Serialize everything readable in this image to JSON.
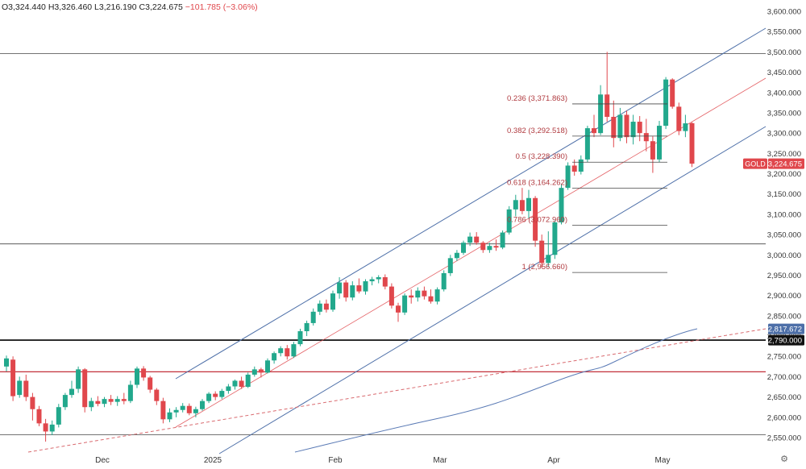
{
  "ohlc": {
    "open_label": "O",
    "open": "3,324.440",
    "high_label": "H",
    "high": "3,326.460",
    "low_label": "L",
    "low": "3,216.190",
    "close_label": "C",
    "close": "3,224.675",
    "change": "−101.785 (−3.06%)"
  },
  "colors": {
    "up": "#22a88c",
    "down": "#e0474c",
    "channel": "#4d6fa8",
    "fib": "#444444",
    "fib_text": "#b03a3f",
    "ma": "#5a7ab5",
    "support_dashed": "#d96a6f",
    "hline_dark": "#444444",
    "hline_red": "#c2303a",
    "axis_text": "#333333",
    "price_label_red": "#e0474c",
    "price_label_blue": "#4d6fa8",
    "price_label_black": "#111111"
  },
  "settings_icon": "gear-icon",
  "chart_data": {
    "type": "candlestick",
    "symbol": "GOLD",
    "y_ticks": [
      "3,600.000",
      "3,550.000",
      "3,500.000",
      "3,450.000",
      "3,400.000",
      "3,350.000",
      "3,300.000",
      "3,250.000",
      "3,200.000",
      "3,150.000",
      "3,100.000",
      "3,050.000",
      "3,000.000",
      "2,950.000",
      "2,900.000",
      "2,850.000",
      "2,800.000",
      "2,750.000",
      "2,700.000",
      "2,650.000",
      "2,600.000",
      "2,550.000"
    ],
    "x_ticks": [
      "Dec",
      "2025",
      "Feb",
      "Mar",
      "Apr",
      "May"
    ],
    "ylim": [
      2525,
      3625
    ],
    "price_labels": [
      {
        "text": "GOLD",
        "value": "3,224.675",
        "price": 3224.675,
        "style": "red"
      },
      {
        "text": "",
        "value": "2,817.672",
        "price": 2817.672,
        "style": "blue"
      },
      {
        "text": "",
        "value": "2,790.000",
        "price": 2790.0,
        "style": "black"
      }
    ],
    "fib_levels": [
      {
        "ratio": "0.236",
        "value": "3,371.863",
        "price": 3371.863
      },
      {
        "ratio": "0.382",
        "value": "3,292.518",
        "price": 3292.518
      },
      {
        "ratio": "0.5",
        "value": "3,228.390",
        "price": 3228.39
      },
      {
        "ratio": "0.618",
        "value": "3,164.262",
        "price": 3164.262
      },
      {
        "ratio": "0.786",
        "value": "3,072.960",
        "price": 3072.96
      },
      {
        "ratio": "1",
        "value": "2,956.660",
        "price": 2956.66
      }
    ],
    "horizontal_lines": [
      {
        "price": 3496,
        "style": "thin-dark"
      },
      {
        "price": 3027,
        "style": "thin-dark"
      },
      {
        "price": 2790,
        "style": "thick-black"
      },
      {
        "price": 2712,
        "style": "red"
      },
      {
        "price": 2557,
        "style": "thin-dark"
      }
    ],
    "candles": [
      {
        "o": 2725,
        "h": 2752,
        "l": 2713,
        "c": 2745
      },
      {
        "o": 2742,
        "h": 2750,
        "l": 2640,
        "c": 2652
      },
      {
        "o": 2655,
        "h": 2700,
        "l": 2648,
        "c": 2690
      },
      {
        "o": 2690,
        "h": 2705,
        "l": 2640,
        "c": 2650
      },
      {
        "o": 2650,
        "h": 2660,
        "l": 2592,
        "c": 2620
      },
      {
        "o": 2620,
        "h": 2628,
        "l": 2578,
        "c": 2585
      },
      {
        "o": 2585,
        "h": 2596,
        "l": 2540,
        "c": 2565
      },
      {
        "o": 2565,
        "h": 2592,
        "l": 2556,
        "c": 2582
      },
      {
        "o": 2582,
        "h": 2633,
        "l": 2575,
        "c": 2625
      },
      {
        "o": 2625,
        "h": 2660,
        "l": 2618,
        "c": 2655
      },
      {
        "o": 2655,
        "h": 2690,
        "l": 2648,
        "c": 2670
      },
      {
        "o": 2670,
        "h": 2725,
        "l": 2660,
        "c": 2718
      },
      {
        "o": 2718,
        "h": 2721,
        "l": 2612,
        "c": 2625
      },
      {
        "o": 2625,
        "h": 2648,
        "l": 2615,
        "c": 2640
      },
      {
        "o": 2640,
        "h": 2652,
        "l": 2627,
        "c": 2633
      },
      {
        "o": 2633,
        "h": 2650,
        "l": 2625,
        "c": 2645
      },
      {
        "o": 2645,
        "h": 2655,
        "l": 2630,
        "c": 2638
      },
      {
        "o": 2638,
        "h": 2652,
        "l": 2628,
        "c": 2645
      },
      {
        "o": 2645,
        "h": 2660,
        "l": 2632,
        "c": 2640
      },
      {
        "o": 2640,
        "h": 2690,
        "l": 2635,
        "c": 2680
      },
      {
        "o": 2680,
        "h": 2725,
        "l": 2672,
        "c": 2720
      },
      {
        "o": 2720,
        "h": 2726,
        "l": 2690,
        "c": 2698
      },
      {
        "o": 2698,
        "h": 2702,
        "l": 2660,
        "c": 2668
      },
      {
        "o": 2668,
        "h": 2672,
        "l": 2630,
        "c": 2640
      },
      {
        "o": 2640,
        "h": 2648,
        "l": 2585,
        "c": 2595
      },
      {
        "o": 2595,
        "h": 2622,
        "l": 2588,
        "c": 2612
      },
      {
        "o": 2612,
        "h": 2625,
        "l": 2600,
        "c": 2618
      },
      {
        "o": 2618,
        "h": 2635,
        "l": 2612,
        "c": 2628
      },
      {
        "o": 2628,
        "h": 2634,
        "l": 2605,
        "c": 2610
      },
      {
        "o": 2610,
        "h": 2626,
        "l": 2600,
        "c": 2620
      },
      {
        "o": 2620,
        "h": 2645,
        "l": 2616,
        "c": 2640
      },
      {
        "o": 2640,
        "h": 2662,
        "l": 2635,
        "c": 2658
      },
      {
        "o": 2658,
        "h": 2664,
        "l": 2642,
        "c": 2650
      },
      {
        "o": 2650,
        "h": 2670,
        "l": 2645,
        "c": 2665
      },
      {
        "o": 2665,
        "h": 2682,
        "l": 2658,
        "c": 2676
      },
      {
        "o": 2676,
        "h": 2693,
        "l": 2668,
        "c": 2690
      },
      {
        "o": 2690,
        "h": 2700,
        "l": 2670,
        "c": 2675
      },
      {
        "o": 2675,
        "h": 2710,
        "l": 2672,
        "c": 2705
      },
      {
        "o": 2705,
        "h": 2725,
        "l": 2700,
        "c": 2718
      },
      {
        "o": 2718,
        "h": 2722,
        "l": 2698,
        "c": 2710
      },
      {
        "o": 2710,
        "h": 2745,
        "l": 2708,
        "c": 2740
      },
      {
        "o": 2740,
        "h": 2762,
        "l": 2732,
        "c": 2758
      },
      {
        "o": 2758,
        "h": 2775,
        "l": 2750,
        "c": 2770
      },
      {
        "o": 2770,
        "h": 2778,
        "l": 2742,
        "c": 2750
      },
      {
        "o": 2750,
        "h": 2786,
        "l": 2746,
        "c": 2780
      },
      {
        "o": 2780,
        "h": 2818,
        "l": 2775,
        "c": 2812
      },
      {
        "o": 2812,
        "h": 2838,
        "l": 2800,
        "c": 2832
      },
      {
        "o": 2832,
        "h": 2868,
        "l": 2826,
        "c": 2860
      },
      {
        "o": 2860,
        "h": 2888,
        "l": 2852,
        "c": 2880
      },
      {
        "o": 2880,
        "h": 2890,
        "l": 2858,
        "c": 2865
      },
      {
        "o": 2865,
        "h": 2912,
        "l": 2860,
        "c": 2905
      },
      {
        "o": 2905,
        "h": 2945,
        "l": 2892,
        "c": 2932
      },
      {
        "o": 2932,
        "h": 2938,
        "l": 2885,
        "c": 2895
      },
      {
        "o": 2895,
        "h": 2935,
        "l": 2888,
        "c": 2925
      },
      {
        "o": 2925,
        "h": 2942,
        "l": 2905,
        "c": 2910
      },
      {
        "o": 2910,
        "h": 2940,
        "l": 2902,
        "c": 2935
      },
      {
        "o": 2935,
        "h": 2946,
        "l": 2925,
        "c": 2940
      },
      {
        "o": 2940,
        "h": 2950,
        "l": 2930,
        "c": 2945
      },
      {
        "o": 2945,
        "h": 2952,
        "l": 2915,
        "c": 2922
      },
      {
        "o": 2922,
        "h": 2930,
        "l": 2868,
        "c": 2875
      },
      {
        "o": 2875,
        "h": 2882,
        "l": 2835,
        "c": 2858
      },
      {
        "o": 2858,
        "h": 2905,
        "l": 2852,
        "c": 2900
      },
      {
        "o": 2900,
        "h": 2915,
        "l": 2880,
        "c": 2895
      },
      {
        "o": 2895,
        "h": 2920,
        "l": 2885,
        "c": 2912
      },
      {
        "o": 2912,
        "h": 2922,
        "l": 2890,
        "c": 2898
      },
      {
        "o": 2898,
        "h": 2915,
        "l": 2880,
        "c": 2885
      },
      {
        "o": 2885,
        "h": 2920,
        "l": 2878,
        "c": 2915
      },
      {
        "o": 2915,
        "h": 2962,
        "l": 2910,
        "c": 2955
      },
      {
        "o": 2955,
        "h": 3000,
        "l": 2948,
        "c": 2992
      },
      {
        "o": 2992,
        "h": 3012,
        "l": 2985,
        "c": 3005
      },
      {
        "o": 3005,
        "h": 3035,
        "l": 3000,
        "c": 3030
      },
      {
        "o": 3030,
        "h": 3055,
        "l": 3022,
        "c": 3045
      },
      {
        "o": 3045,
        "h": 3056,
        "l": 3025,
        "c": 3030
      },
      {
        "o": 3030,
        "h": 3034,
        "l": 3005,
        "c": 3012
      },
      {
        "o": 3012,
        "h": 3030,
        "l": 3005,
        "c": 3022
      },
      {
        "o": 3022,
        "h": 3038,
        "l": 3010,
        "c": 3018
      },
      {
        "o": 3018,
        "h": 3060,
        "l": 3014,
        "c": 3055
      },
      {
        "o": 3055,
        "h": 3120,
        "l": 3050,
        "c": 3112
      },
      {
        "o": 3112,
        "h": 3148,
        "l": 3095,
        "c": 3135
      },
      {
        "o": 3135,
        "h": 3165,
        "l": 3100,
        "c": 3108
      },
      {
        "o": 3108,
        "h": 3160,
        "l": 3090,
        "c": 3140
      },
      {
        "o": 3140,
        "h": 3145,
        "l": 3020,
        "c": 3035
      },
      {
        "o": 3035,
        "h": 3050,
        "l": 2968,
        "c": 2980
      },
      {
        "o": 2980,
        "h": 3058,
        "l": 2970,
        "c": 3000
      },
      {
        "o": 3000,
        "h": 3085,
        "l": 2990,
        "c": 3080
      },
      {
        "o": 3080,
        "h": 3175,
        "l": 3075,
        "c": 3165
      },
      {
        "o": 3165,
        "h": 3228,
        "l": 3160,
        "c": 3220
      },
      {
        "o": 3220,
        "h": 3235,
        "l": 3195,
        "c": 3205
      },
      {
        "o": 3205,
        "h": 3245,
        "l": 3198,
        "c": 3235
      },
      {
        "o": 3235,
        "h": 3318,
        "l": 3228,
        "c": 3312
      },
      {
        "o": 3312,
        "h": 3345,
        "l": 3290,
        "c": 3300
      },
      {
        "o": 3300,
        "h": 3418,
        "l": 3295,
        "c": 3395
      },
      {
        "o": 3395,
        "h": 3500,
        "l": 3328,
        "c": 3340
      },
      {
        "o": 3340,
        "h": 3380,
        "l": 3265,
        "c": 3288
      },
      {
        "o": 3288,
        "h": 3362,
        "l": 3280,
        "c": 3345
      },
      {
        "o": 3345,
        "h": 3355,
        "l": 3275,
        "c": 3290
      },
      {
        "o": 3290,
        "h": 3345,
        "l": 3272,
        "c": 3328
      },
      {
        "o": 3328,
        "h": 3342,
        "l": 3280,
        "c": 3300
      },
      {
        "o": 3300,
        "h": 3335,
        "l": 3255,
        "c": 3280
      },
      {
        "o": 3280,
        "h": 3292,
        "l": 3202,
        "c": 3235
      },
      {
        "o": 3235,
        "h": 3330,
        "l": 3228,
        "c": 3318
      },
      {
        "o": 3318,
        "h": 3438,
        "l": 3310,
        "c": 3432
      },
      {
        "o": 3432,
        "h": 3435,
        "l": 3360,
        "c": 3365
      },
      {
        "o": 3365,
        "h": 3375,
        "l": 3295,
        "c": 3305
      },
      {
        "o": 3305,
        "h": 3345,
        "l": 3290,
        "c": 3324
      },
      {
        "o": 3324.44,
        "h": 3326.46,
        "l": 3216.19,
        "c": 3224.675
      }
    ]
  }
}
